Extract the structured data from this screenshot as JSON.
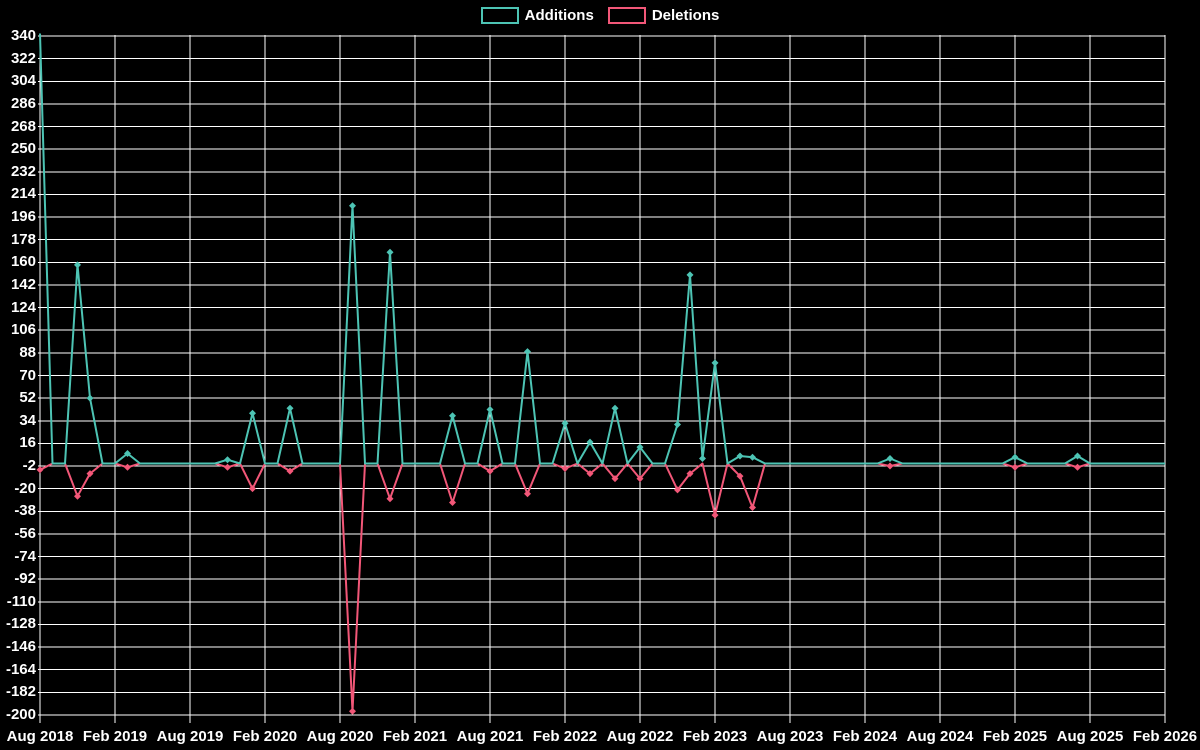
{
  "legend": {
    "items": [
      {
        "label": "Additions",
        "color": "#4DC4B4"
      },
      {
        "label": "Deletions",
        "color": "#F25778"
      }
    ]
  },
  "chart_data": {
    "type": "line",
    "title": "",
    "legend_position": "top-center",
    "grid": true,
    "background_color": "#000000",
    "grid_color": "#FFFFFF",
    "text_color": "#FFFFFF",
    "x_axis": {
      "unit": "month",
      "tick_interval_months": 6,
      "tick_labels": [
        "Aug 2018",
        "Feb 2019",
        "Aug 2019",
        "Feb 2020",
        "Aug 2020",
        "Feb 2021",
        "Aug 2021",
        "Feb 2022",
        "Aug 2022",
        "Feb 2023",
        "Aug 2023",
        "Feb 2024",
        "Aug 2024",
        "Feb 2025",
        "Aug 2025",
        "Feb 2026"
      ]
    },
    "y_axis": {
      "max": 340,
      "min": -200,
      "tick_step": 18,
      "tick_labels": [
        "340",
        "322",
        "304",
        "286",
        "268",
        "250",
        "232",
        "214",
        "196",
        "178",
        "160",
        "142",
        "124",
        "106",
        "88",
        "70",
        "52",
        "34",
        "16",
        "-2",
        "-20",
        "-38",
        "-56",
        "-74",
        "-92",
        "-110",
        "-128",
        "-146",
        "-164",
        "-182",
        "-200"
      ]
    },
    "timeline": {
      "start": "Aug 2018",
      "end": "Feb 2026",
      "n_months": 91
    },
    "series": [
      {
        "name": "Additions",
        "color": "#4DC4B4",
        "default_value": 0,
        "points": [
          {
            "i": 0,
            "month": "Aug 2018",
            "value": 342
          },
          {
            "i": 3,
            "month": "Nov 2018",
            "value": 158
          },
          {
            "i": 4,
            "month": "Dec 2018",
            "value": 52
          },
          {
            "i": 7,
            "month": "Mar 2019",
            "value": 8
          },
          {
            "i": 15,
            "month": "Nov 2019",
            "value": 3
          },
          {
            "i": 17,
            "month": "Jan 2020",
            "value": 40
          },
          {
            "i": 20,
            "month": "Apr 2020",
            "value": 44
          },
          {
            "i": 25,
            "month": "Sep 2020",
            "value": 205
          },
          {
            "i": 28,
            "month": "Dec 2020",
            "value": 168
          },
          {
            "i": 33,
            "month": "May 2021",
            "value": 38
          },
          {
            "i": 36,
            "month": "Aug 2021",
            "value": 43
          },
          {
            "i": 39,
            "month": "Nov 2021",
            "value": 89
          },
          {
            "i": 42,
            "month": "Feb 2022",
            "value": 32
          },
          {
            "i": 44,
            "month": "Apr 2022",
            "value": 17
          },
          {
            "i": 46,
            "month": "Jun 2022",
            "value": 44
          },
          {
            "i": 48,
            "month": "Aug 2022",
            "value": 13
          },
          {
            "i": 51,
            "month": "Nov 2022",
            "value": 31
          },
          {
            "i": 52,
            "month": "Dec 2022",
            "value": 150
          },
          {
            "i": 53,
            "month": "Jan 2023",
            "value": 4
          },
          {
            "i": 54,
            "month": "Feb 2023",
            "value": 80
          },
          {
            "i": 56,
            "month": "Apr 2023",
            "value": 6
          },
          {
            "i": 57,
            "month": "May 2023",
            "value": 5
          },
          {
            "i": 68,
            "month": "Apr 2024",
            "value": 4
          },
          {
            "i": 78,
            "month": "Feb 2025",
            "value": 5
          },
          {
            "i": 83,
            "month": "Jul 2025",
            "value": 6
          }
        ]
      },
      {
        "name": "Deletions",
        "color": "#F25778",
        "default_value": 0,
        "points": [
          {
            "i": 0,
            "month": "Aug 2018",
            "value": -5
          },
          {
            "i": 3,
            "month": "Nov 2018",
            "value": -26
          },
          {
            "i": 4,
            "month": "Dec 2018",
            "value": -8
          },
          {
            "i": 7,
            "month": "Mar 2019",
            "value": -3
          },
          {
            "i": 15,
            "month": "Nov 2019",
            "value": -3
          },
          {
            "i": 17,
            "month": "Jan 2020",
            "value": -20
          },
          {
            "i": 20,
            "month": "Apr 2020",
            "value": -6
          },
          {
            "i": 25,
            "month": "Sep 2020",
            "value": -197
          },
          {
            "i": 28,
            "month": "Dec 2020",
            "value": -28
          },
          {
            "i": 33,
            "month": "May 2021",
            "value": -31
          },
          {
            "i": 36,
            "month": "Aug 2021",
            "value": -6
          },
          {
            "i": 39,
            "month": "Nov 2021",
            "value": -24
          },
          {
            "i": 42,
            "month": "Feb 2022",
            "value": -4
          },
          {
            "i": 44,
            "month": "Apr 2022",
            "value": -8
          },
          {
            "i": 46,
            "month": "Jun 2022",
            "value": -12
          },
          {
            "i": 48,
            "month": "Aug 2022",
            "value": -12
          },
          {
            "i": 51,
            "month": "Nov 2022",
            "value": -21
          },
          {
            "i": 52,
            "month": "Dec 2022",
            "value": -8
          },
          {
            "i": 54,
            "month": "Feb 2023",
            "value": -41
          },
          {
            "i": 56,
            "month": "Apr 2023",
            "value": -10
          },
          {
            "i": 57,
            "month": "May 2023",
            "value": -35
          },
          {
            "i": 68,
            "month": "Apr 2024",
            "value": -2
          },
          {
            "i": 78,
            "month": "Feb 2025",
            "value": -3
          },
          {
            "i": 83,
            "month": "Jul 2025",
            "value": -3
          }
        ]
      }
    ]
  }
}
